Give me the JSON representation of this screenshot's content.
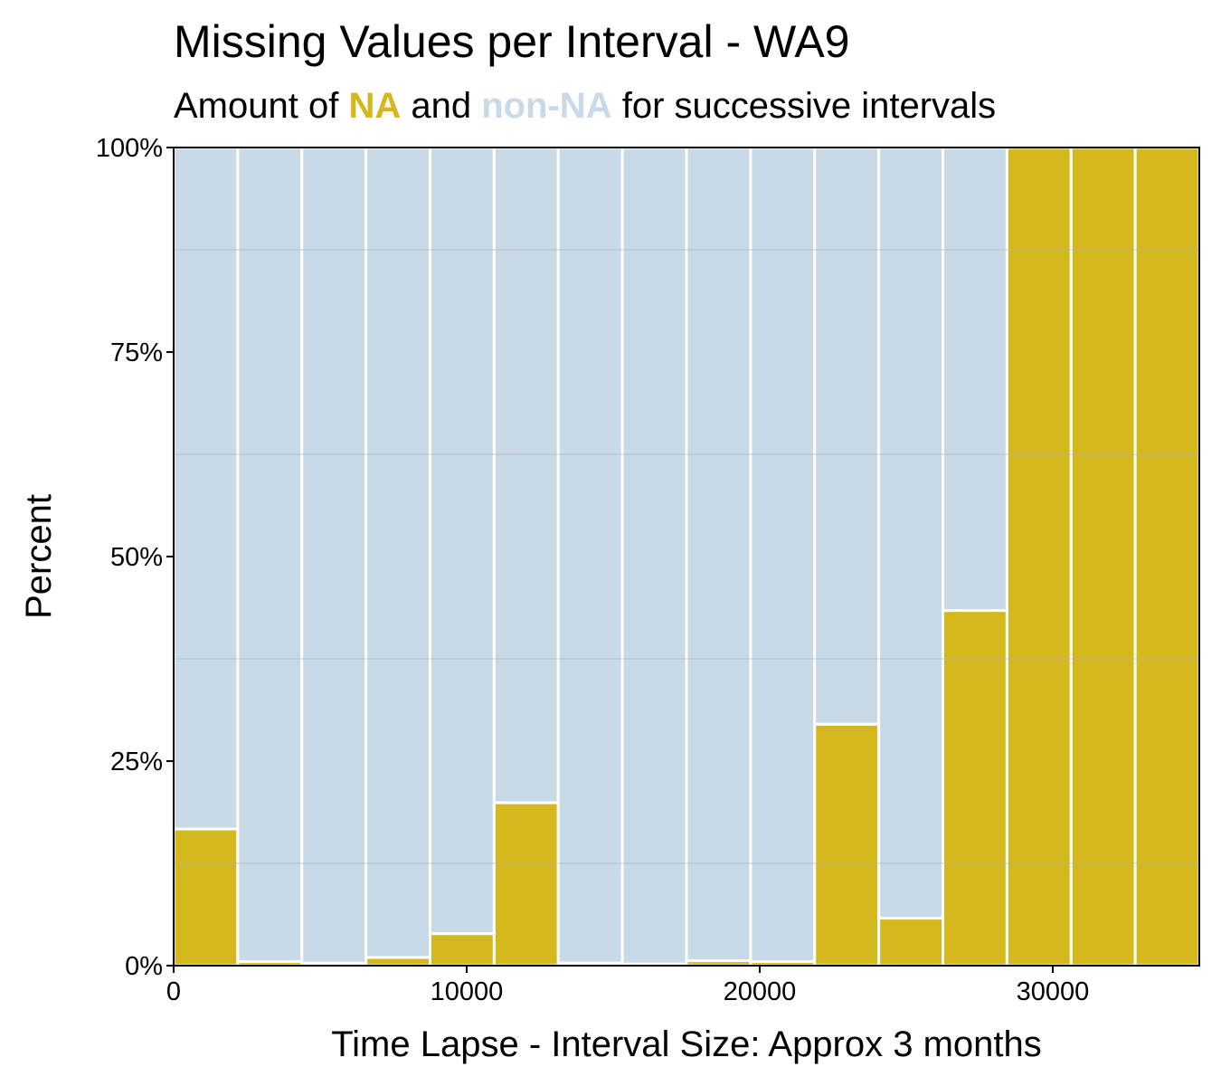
{
  "title": "Missing Values per Interval - WA9",
  "subtitle": {
    "prefix": "Amount of ",
    "na_word": "NA",
    "middle": " and ",
    "nonna_word": "non-NA",
    "suffix": " for successive intervals"
  },
  "colors": {
    "na": "#d4b81e",
    "non_na": "#c8d9e8",
    "bar_border": "#ffffff",
    "gridline": "#a9b5c0"
  },
  "chart_data": {
    "type": "bar",
    "stacked": true,
    "percent": true,
    "xlabel": "Time Lapse - Interval Size: Approx 3 months",
    "ylabel": "Percent",
    "xlim": [
      0,
      35000
    ],
    "ylim": [
      0,
      100
    ],
    "x_ticks": [
      {
        "value": 0,
        "label": "0"
      },
      {
        "value": 10000,
        "label": "10000"
      },
      {
        "value": 20000,
        "label": "20000"
      },
      {
        "value": 30000,
        "label": "30000"
      }
    ],
    "y_ticks": [
      {
        "value": 0,
        "label": "0%"
      },
      {
        "value": 25,
        "label": "25%"
      },
      {
        "value": 50,
        "label": "50%"
      },
      {
        "value": 75,
        "label": "75%"
      },
      {
        "value": 100,
        "label": "100%"
      }
    ],
    "y_gridlines": [
      12.5,
      37.5,
      62.5,
      87.5
    ],
    "interval_width": 2187.5,
    "intervals": [
      {
        "start": 0,
        "end": 2187.5,
        "na_percent": 16.7
      },
      {
        "start": 2187.5,
        "end": 4375,
        "na_percent": 0.5
      },
      {
        "start": 4375,
        "end": 6562.5,
        "na_percent": 0.3
      },
      {
        "start": 6562.5,
        "end": 8750,
        "na_percent": 1.0
      },
      {
        "start": 8750,
        "end": 10937.5,
        "na_percent": 3.9
      },
      {
        "start": 10937.5,
        "end": 13125,
        "na_percent": 19.9
      },
      {
        "start": 13125,
        "end": 15312.5,
        "na_percent": 0.3
      },
      {
        "start": 15312.5,
        "end": 17500,
        "na_percent": 0.2
      },
      {
        "start": 17500,
        "end": 19687.5,
        "na_percent": 0.6
      },
      {
        "start": 19687.5,
        "end": 21875,
        "na_percent": 0.5
      },
      {
        "start": 21875,
        "end": 24062.5,
        "na_percent": 29.5
      },
      {
        "start": 24062.5,
        "end": 26250,
        "na_percent": 5.8
      },
      {
        "start": 26250,
        "end": 28437.5,
        "na_percent": 43.4
      },
      {
        "start": 28437.5,
        "end": 30625,
        "na_percent": 100
      },
      {
        "start": 30625,
        "end": 32812.5,
        "na_percent": 100
      },
      {
        "start": 32812.5,
        "end": 35000,
        "na_percent": 100
      }
    ]
  }
}
